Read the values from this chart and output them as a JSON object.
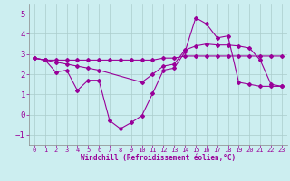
{
  "xlabel": "Windchill (Refroidissement éolien,°C)",
  "bg_color": "#cceef0",
  "line_color": "#990099",
  "grid_color": "#aacccc",
  "ylim": [
    -1.5,
    5.5
  ],
  "xlim": [
    -0.5,
    23.5
  ],
  "yticks": [
    -1,
    0,
    1,
    2,
    3,
    4,
    5
  ],
  "xticks": [
    0,
    1,
    2,
    3,
    4,
    5,
    6,
    7,
    8,
    9,
    10,
    11,
    12,
    13,
    14,
    15,
    16,
    17,
    18,
    19,
    20,
    21,
    22,
    23
  ],
  "series1_x": [
    0,
    1,
    2,
    3,
    4,
    5,
    6,
    7,
    8,
    9,
    10,
    11,
    12,
    13,
    14,
    15,
    16,
    17,
    18,
    19,
    20,
    21,
    22,
    23
  ],
  "series1_y": [
    2.8,
    2.7,
    2.7,
    2.7,
    2.7,
    2.7,
    2.7,
    2.7,
    2.7,
    2.7,
    2.7,
    2.7,
    2.8,
    2.8,
    2.9,
    2.9,
    2.9,
    2.9,
    2.9,
    2.9,
    2.9,
    2.9,
    2.9,
    2.9
  ],
  "series2_x": [
    0,
    1,
    2,
    3,
    4,
    5,
    6,
    7,
    8,
    9,
    10,
    11,
    12,
    13,
    14,
    15,
    16,
    17,
    18,
    19,
    20,
    21,
    22,
    23
  ],
  "series2_y": [
    2.8,
    2.7,
    2.1,
    2.2,
    1.2,
    1.7,
    1.7,
    -0.3,
    -0.7,
    -0.4,
    -0.05,
    1.05,
    2.2,
    2.3,
    3.1,
    4.8,
    4.5,
    3.8,
    3.9,
    1.6,
    1.5,
    1.4,
    1.4,
    1.4
  ],
  "series3_x": [
    0,
    1,
    2,
    3,
    4,
    5,
    6,
    10,
    11,
    12,
    13,
    14,
    15,
    16,
    17,
    18,
    19,
    20,
    21,
    22,
    23
  ],
  "series3_y": [
    2.8,
    2.7,
    2.6,
    2.5,
    2.4,
    2.3,
    2.2,
    1.6,
    2.0,
    2.4,
    2.5,
    3.2,
    3.4,
    3.5,
    3.45,
    3.45,
    3.4,
    3.3,
    2.7,
    1.5,
    1.4
  ]
}
